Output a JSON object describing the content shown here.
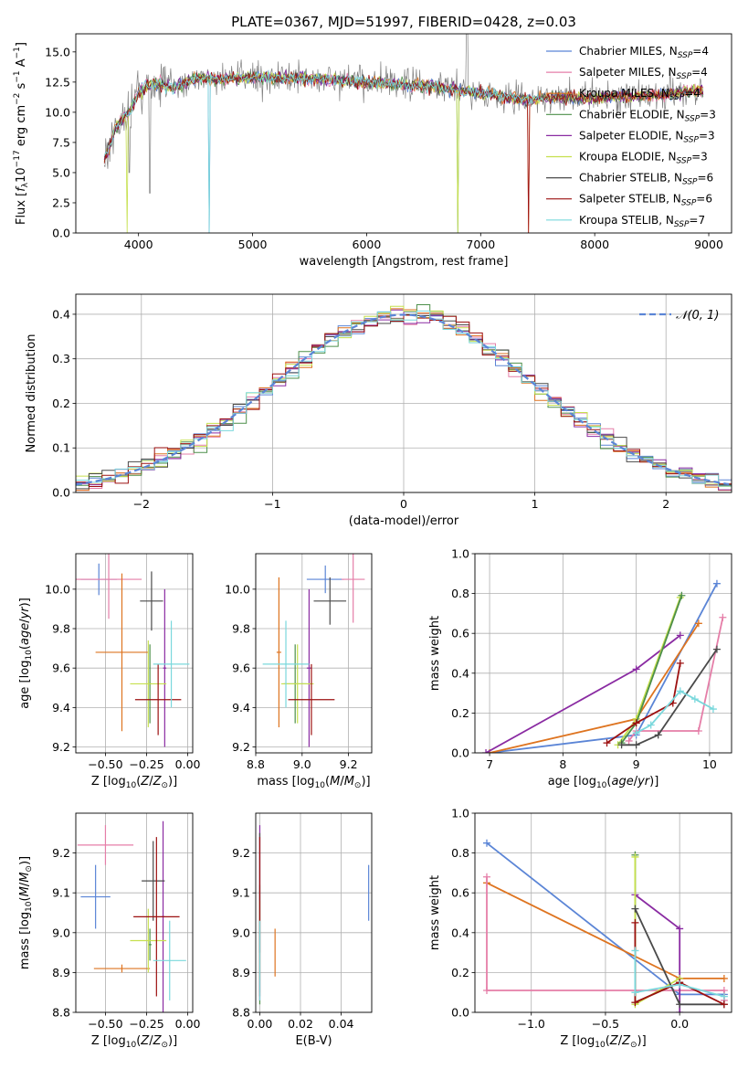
{
  "figure": {
    "title": "PLATE=0367, MJD=51997, FIBERID=0428, z=0.03"
  },
  "colors": {
    "Chabrier MILES": "#5b85d6",
    "Salpeter MILES": "#e57ea8",
    "Kroupa MILES": "#de7420",
    "Chabrier ELODIE": "#4d8f4a",
    "Salpeter ELODIE": "#8a2ba2",
    "Kroupa ELODIE": "#c6e04e",
    "Chabrier STELIB": "#4a4a4a",
    "Salpeter STELIB": "#9c1010",
    "Kroupa STELIB": "#7ad8dc",
    "data": "#808080",
    "normal": "#5b85d6"
  },
  "legend": [
    {
      "name": "Chabrier MILES",
      "nssp": "4"
    },
    {
      "name": "Salpeter MILES",
      "nssp": "4"
    },
    {
      "name": "Kroupa MILES",
      "nssp": "4"
    },
    {
      "name": "Chabrier ELODIE",
      "nssp": "3"
    },
    {
      "name": "Salpeter ELODIE",
      "nssp": "3"
    },
    {
      "name": "Kroupa ELODIE",
      "nssp": "3"
    },
    {
      "name": "Chabrier STELIB",
      "nssp": "6"
    },
    {
      "name": "Salpeter STELIB",
      "nssp": "6"
    },
    {
      "name": "Kroupa STELIB",
      "nssp": "7"
    }
  ],
  "chart_data": [
    {
      "id": "spectrum",
      "type": "line",
      "title": "PLATE=0367, MJD=51997, FIBERID=0428, z=0.03",
      "xlabel": "wavelength [Angstrom, rest frame]",
      "ylabel": "Flux [f_λ 10^-17 erg cm^-2 s^-1 A^-1]",
      "xlim": [
        3450,
        9200
      ],
      "ylim": [
        0,
        16.5
      ],
      "xticks": [
        "4000",
        "5000",
        "6000",
        "7000",
        "8000",
        "9000"
      ],
      "yticks": [
        "0.0",
        "2.5",
        "5.0",
        "7.5",
        "10.0",
        "12.5",
        "15.0"
      ],
      "grid": false,
      "legend_position": "top-right",
      "model_continuum": {
        "x": [
          3700,
          3800,
          3900,
          3950,
          4000,
          4100,
          4200,
          4300,
          4500,
          4800,
          5000,
          5500,
          6000,
          6500,
          7000,
          7400,
          7600,
          8000,
          8500,
          8900
        ],
        "y": [
          6.0,
          8.8,
          9.8,
          10.6,
          11.6,
          12.3,
          12.3,
          12.0,
          12.8,
          12.8,
          12.9,
          12.8,
          12.5,
          12.2,
          11.6,
          11.0,
          11.3,
          11.2,
          11.4,
          11.8
        ]
      },
      "wavelength_range": [
        3700,
        8950
      ]
    },
    {
      "id": "residual-distribution",
      "type": "histogram",
      "xlabel": "(data-model)/error",
      "ylabel": "Normed distribution",
      "xlim": [
        -2.5,
        2.5
      ],
      "ylim": [
        0,
        0.445
      ],
      "xticks": [
        "−2",
        "−1",
        "0",
        "1",
        "2"
      ],
      "yticks": [
        "0.0",
        "0.1",
        "0.2",
        "0.3",
        "0.4"
      ],
      "grid": true,
      "bin_width": 0.1,
      "legend": "𝒩(0, 1)",
      "legend_position": "top-right"
    },
    {
      "id": "age-vs-Z",
      "type": "errorbar",
      "xlabel": "Z [log10(Z/Z☉)]",
      "ylabel": "age [log10(age/yr)]",
      "xlim": [
        -0.68,
        0.03
      ],
      "ylim": [
        9.17,
        10.18
      ],
      "xticks": [
        "−0.50",
        "−0.25",
        "0.00"
      ],
      "yticks": [
        "9.2",
        "9.4",
        "9.6",
        "9.8",
        "10.0"
      ],
      "grid": true,
      "points": [
        {
          "series": "Chabrier MILES",
          "x": -0.54,
          "xerr": 0.11,
          "y": 10.05,
          "yerr": 0.08
        },
        {
          "series": "Salpeter MILES",
          "x": -0.48,
          "xerr": 0.2,
          "y": 10.05,
          "yerr": 0.2
        },
        {
          "series": "Kroupa MILES",
          "x": -0.4,
          "xerr": 0.16,
          "y": 9.68,
          "yerr": 0.4
        },
        {
          "series": "Chabrier ELODIE",
          "x": -0.23,
          "xerr": 0.01,
          "y": 9.52,
          "yerr": 0.2
        },
        {
          "series": "Salpeter ELODIE",
          "x": -0.14,
          "xerr": 0.01,
          "y": 9.6,
          "yerr": 0.4
        },
        {
          "series": "Kroupa ELODIE",
          "x": -0.24,
          "xerr": 0.11,
          "y": 9.52,
          "yerr": 0.22
        },
        {
          "series": "Chabrier STELIB",
          "x": -0.22,
          "xerr": 0.07,
          "y": 9.94,
          "yerr": 0.15
        },
        {
          "series": "Salpeter STELIB",
          "x": -0.18,
          "xerr": 0.14,
          "y": 9.44,
          "yerr": 0.18
        },
        {
          "series": "Kroupa STELIB",
          "x": -0.1,
          "xerr": 0.11,
          "y": 9.62,
          "yerr": 0.22
        }
      ]
    },
    {
      "id": "age-vs-mass",
      "type": "errorbar",
      "xlabel": "mass [log10(M/M☉)]",
      "ylabel": "",
      "xlim": [
        8.8,
        9.3
      ],
      "ylim": [
        9.17,
        10.18
      ],
      "xticks": [
        "8.8",
        "9.0",
        "9.2"
      ],
      "yticks": [
        "9.2",
        "9.4",
        "9.6",
        "9.8",
        "10.0"
      ],
      "grid": true,
      "points": [
        {
          "series": "Chabrier MILES",
          "x": 9.1,
          "xerr": 0.08,
          "y": 10.05,
          "yerr": 0.07
        },
        {
          "series": "Salpeter MILES",
          "x": 9.22,
          "xerr": 0.05,
          "y": 10.05,
          "yerr": 0.22
        },
        {
          "series": "Kroupa MILES",
          "x": 8.9,
          "xerr": 0.01,
          "y": 9.68,
          "yerr": 0.38
        },
        {
          "series": "Chabrier ELODIE",
          "x": 8.97,
          "xerr": 0.05,
          "y": 9.52,
          "yerr": 0.2
        },
        {
          "series": "Salpeter ELODIE",
          "x": 9.03,
          "xerr": 0.01,
          "y": 9.6,
          "yerr": 0.4
        },
        {
          "series": "Kroupa ELODIE",
          "x": 8.98,
          "xerr": 0.07,
          "y": 9.52,
          "yerr": 0.2
        },
        {
          "series": "Chabrier STELIB",
          "x": 9.12,
          "xerr": 0.07,
          "y": 9.94,
          "yerr": 0.12
        },
        {
          "series": "Salpeter STELIB",
          "x": 9.04,
          "xerr": 0.1,
          "y": 9.44,
          "yerr": 0.18
        },
        {
          "series": "Kroupa STELIB",
          "x": 8.93,
          "xerr": 0.1,
          "y": 9.62,
          "yerr": 0.22
        }
      ]
    },
    {
      "id": "massweight-vs-age",
      "type": "line",
      "xlabel": "age [log10(age/yr)]",
      "ylabel": "mass weight",
      "xlim": [
        6.8,
        10.3
      ],
      "ylim": [
        0,
        1.0
      ],
      "xticks": [
        "7",
        "8",
        "9",
        "10"
      ],
      "yticks": [
        "0.0",
        "0.2",
        "0.4",
        "0.6",
        "0.8",
        "1.0"
      ],
      "grid": true,
      "series": [
        {
          "name": "Chabrier MILES",
          "x": [
            10.1,
            9.0,
            7.0
          ],
          "y": [
            0.85,
            0.09,
            0.0
          ]
        },
        {
          "name": "Kroupa MILES",
          "x": [
            9.85,
            9.0,
            7.0
          ],
          "y": [
            0.65,
            0.17,
            0.0
          ]
        },
        {
          "name": "Salpeter ELODIE",
          "x": [
            9.6,
            9.0,
            6.95
          ],
          "y": [
            0.59,
            0.42,
            0.0
          ]
        },
        {
          "name": "Kroupa ELODIE",
          "x": [
            9.6,
            9.0,
            8.75
          ],
          "y": [
            0.78,
            0.17,
            0.04
          ]
        },
        {
          "name": "Chabrier ELODIE",
          "x": [
            9.62,
            9.0,
            8.8
          ],
          "y": [
            0.79,
            0.15,
            0.05
          ]
        },
        {
          "name": "Salpeter MILES",
          "x": [
            10.18,
            9.85,
            9.0,
            8.9
          ],
          "y": [
            0.68,
            0.11,
            0.11,
            0.06
          ]
        },
        {
          "name": "Chabrier STELIB",
          "x": [
            10.1,
            9.3,
            9.0,
            8.8
          ],
          "y": [
            0.52,
            0.09,
            0.04,
            0.04
          ]
        },
        {
          "name": "Salpeter STELIB",
          "x": [
            9.6,
            9.5,
            9.0,
            8.6
          ],
          "y": [
            0.45,
            0.25,
            0.15,
            0.05
          ]
        },
        {
          "name": "Kroupa STELIB",
          "x": [
            10.05,
            9.8,
            9.6,
            9.2,
            9.0
          ],
          "y": [
            0.22,
            0.27,
            0.31,
            0.14,
            0.1
          ]
        }
      ]
    },
    {
      "id": "mass-vs-Z",
      "type": "errorbar",
      "xlabel": "Z [log10(Z/Z☉)]",
      "ylabel": "mass [log10(M/M☉)]",
      "xlim": [
        -0.68,
        0.03
      ],
      "ylim": [
        8.8,
        9.3
      ],
      "xticks": [
        "−0.50",
        "−0.25",
        "0.00"
      ],
      "yticks": [
        "8.8",
        "8.9",
        "9.0",
        "9.1",
        "9.2"
      ],
      "grid": true,
      "points": [
        {
          "series": "Chabrier MILES",
          "x": -0.56,
          "xerr": 0.09,
          "y": 9.09,
          "yerr": 0.08
        },
        {
          "series": "Salpeter MILES",
          "x": -0.5,
          "xerr": 0.17,
          "y": 9.22,
          "yerr": 0.05
        },
        {
          "series": "Kroupa MILES",
          "x": -0.4,
          "xerr": 0.17,
          "y": 8.91,
          "yerr": 0.01
        },
        {
          "series": "Chabrier ELODIE",
          "x": -0.23,
          "xerr": 0.01,
          "y": 8.97,
          "yerr": 0.04
        },
        {
          "series": "Salpeter ELODIE",
          "x": -0.15,
          "xerr": 0.01,
          "y": 9.04,
          "yerr": 0.24
        },
        {
          "series": "Kroupa ELODIE",
          "x": -0.24,
          "xerr": 0.11,
          "y": 8.98,
          "yerr": 0.08
        },
        {
          "series": "Chabrier STELIB",
          "x": -0.21,
          "xerr": 0.07,
          "y": 9.13,
          "yerr": 0.1
        },
        {
          "series": "Salpeter STELIB",
          "x": -0.19,
          "xerr": 0.14,
          "y": 9.04,
          "yerr": 0.2
        },
        {
          "series": "Kroupa STELIB",
          "x": -0.11,
          "xerr": 0.1,
          "y": 8.93,
          "yerr": 0.1
        }
      ]
    },
    {
      "id": "mass-vs-ebv",
      "type": "errorbar",
      "xlabel": "E(B-V)",
      "ylabel": "",
      "xlim": [
        -0.002,
        0.055
      ],
      "ylim": [
        8.8,
        9.3
      ],
      "xticks": [
        "0.00",
        "0.02",
        "0.04"
      ],
      "yticks": [
        "8.8",
        "8.9",
        "9.0",
        "9.1",
        "9.2"
      ],
      "grid": true,
      "points": [
        {
          "series": "Chabrier MILES",
          "x": 0.0535,
          "xerr": 0.0,
          "y": 9.1,
          "yerr": 0.07
        },
        {
          "series": "Salpeter MILES",
          "x": 0.0,
          "xerr": 0.0,
          "y": 9.05,
          "yerr": 0.2
        },
        {
          "series": "Kroupa MILES",
          "x": 0.0075,
          "xerr": 0.0,
          "y": 8.95,
          "yerr": 0.06
        },
        {
          "series": "Chabrier ELODIE",
          "x": 0.0,
          "xerr": 0.0,
          "y": 8.97,
          "yerr": 0.15
        },
        {
          "series": "Salpeter ELODIE",
          "x": 0.0,
          "xerr": 0.0,
          "y": 9.05,
          "yerr": 0.22
        },
        {
          "series": "Kroupa ELODIE",
          "x": 0.0,
          "xerr": 0.0,
          "y": 8.98,
          "yerr": 0.1
        },
        {
          "series": "Chabrier STELIB",
          "x": 0.0,
          "xerr": 0.0,
          "y": 9.1,
          "yerr": 0.15
        },
        {
          "series": "Salpeter STELIB",
          "x": 0.0,
          "xerr": 0.0,
          "y": 9.04,
          "yerr": 0.2
        },
        {
          "series": "Kroupa STELIB",
          "x": 0.0,
          "xerr": 0.0,
          "y": 8.93,
          "yerr": 0.1
        }
      ]
    },
    {
      "id": "massweight-vs-Z",
      "type": "line",
      "xlabel": "Z [log10(Z/Z☉)]",
      "ylabel": "mass weight",
      "xlim": [
        -1.38,
        0.35
      ],
      "ylim": [
        0,
        1.0
      ],
      "xticks": [
        "−1.0",
        "−0.5",
        "0.0"
      ],
      "yticks": [
        "0.0",
        "0.2",
        "0.4",
        "0.6",
        "0.8",
        "1.0"
      ],
      "grid": true,
      "series": [
        {
          "name": "Chabrier MILES",
          "x": [
            -1.3,
            0.0,
            0.3
          ],
          "y": [
            0.85,
            0.09,
            0.09
          ]
        },
        {
          "name": "Kroupa MILES",
          "x": [
            -1.3,
            0.0,
            0.3
          ],
          "y": [
            0.65,
            0.17,
            0.17
          ]
        },
        {
          "name": "Salpeter MILES",
          "x": [
            -1.3,
            -1.3,
            0.3,
            0.3
          ],
          "y": [
            0.68,
            0.11,
            0.11,
            0.06
          ]
        },
        {
          "name": "Chabrier ELODIE",
          "x": [
            -0.3,
            -0.3,
            0.0
          ],
          "y": [
            0.79,
            0.05,
            0.15
          ]
        },
        {
          "name": "Salpeter ELODIE",
          "x": [
            -0.3,
            0.0,
            0.0
          ],
          "y": [
            0.59,
            0.42,
            0.0
          ]
        },
        {
          "name": "Kroupa ELODIE",
          "x": [
            -0.3,
            -0.3,
            0.0
          ],
          "y": [
            0.78,
            0.04,
            0.17
          ]
        },
        {
          "name": "Chabrier STELIB",
          "x": [
            -0.3,
            0.0,
            0.3
          ],
          "y": [
            0.52,
            0.04,
            0.04
          ]
        },
        {
          "name": "Salpeter STELIB",
          "x": [
            -0.3,
            -0.3,
            0.0,
            0.3
          ],
          "y": [
            0.45,
            0.05,
            0.15,
            0.04
          ]
        },
        {
          "name": "Kroupa STELIB",
          "x": [
            -0.3,
            -0.3,
            0.0,
            0.3
          ],
          "y": [
            0.31,
            0.1,
            0.14,
            0.08
          ]
        }
      ]
    }
  ]
}
